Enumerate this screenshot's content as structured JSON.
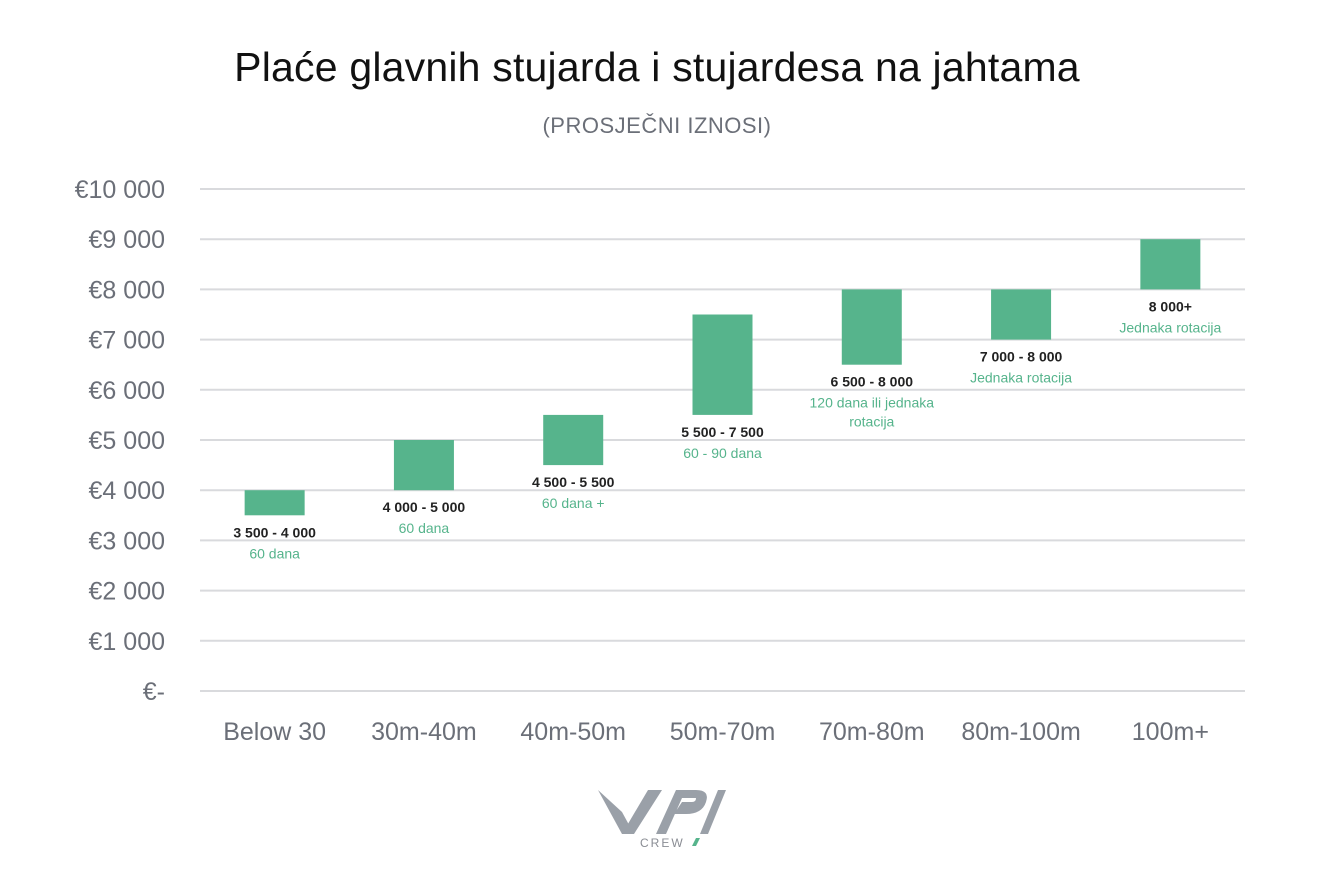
{
  "chart_data": {
    "type": "floating-bar",
    "title": "Plaće glavnih stujarda i stujardesa na jahtama",
    "subtitle": "(PROSJEČNI IZNOSI)",
    "ylim": [
      0,
      10000
    ],
    "y_ticks": [
      {
        "value": 10000,
        "label": "€10 000"
      },
      {
        "value": 9000,
        "label": "€9 000"
      },
      {
        "value": 8000,
        "label": "€8 000"
      },
      {
        "value": 7000,
        "label": "€7 000"
      },
      {
        "value": 6000,
        "label": "€6 000"
      },
      {
        "value": 5000,
        "label": "€5 000"
      },
      {
        "value": 4000,
        "label": "€4 000"
      },
      {
        "value": 3000,
        "label": "€3 000"
      },
      {
        "value": 2000,
        "label": "€2 000"
      },
      {
        "value": 1000,
        "label": "€1 000"
      },
      {
        "value": 0,
        "label": "€-"
      }
    ],
    "grid": true,
    "bar_color": "#56b48c",
    "note_color": "#56b48c",
    "categories": [
      "Below 30",
      "30m-40m",
      "40m-50m",
      "50m-70m",
      "70m-80m",
      "80m-100m",
      "100m+"
    ],
    "bars": [
      {
        "low": 3500,
        "high": 4000,
        "label": "3 500 - 4 000",
        "note": "60 dana"
      },
      {
        "low": 4000,
        "high": 5000,
        "label": "4 000 - 5 000",
        "note": "60 dana"
      },
      {
        "low": 4500,
        "high": 5500,
        "label": "4 500 - 5 500",
        "note": "60 dana +"
      },
      {
        "low": 5500,
        "high": 7500,
        "label": "5 500 - 7 500",
        "note": "60 - 90 dana"
      },
      {
        "low": 6500,
        "high": 8000,
        "label": "6 500 - 8 000",
        "note": "120 dana ili jednaka rotacija"
      },
      {
        "low": 7000,
        "high": 8000,
        "label": "7 000 - 8 000",
        "note": "Jednaka rotacija"
      },
      {
        "low": 8000,
        "high": 9000,
        "label": "8 000+",
        "note": "Jednaka rotacija"
      }
    ]
  },
  "logo": {
    "name": "vpi-crew-logo",
    "caption": "CREW"
  }
}
